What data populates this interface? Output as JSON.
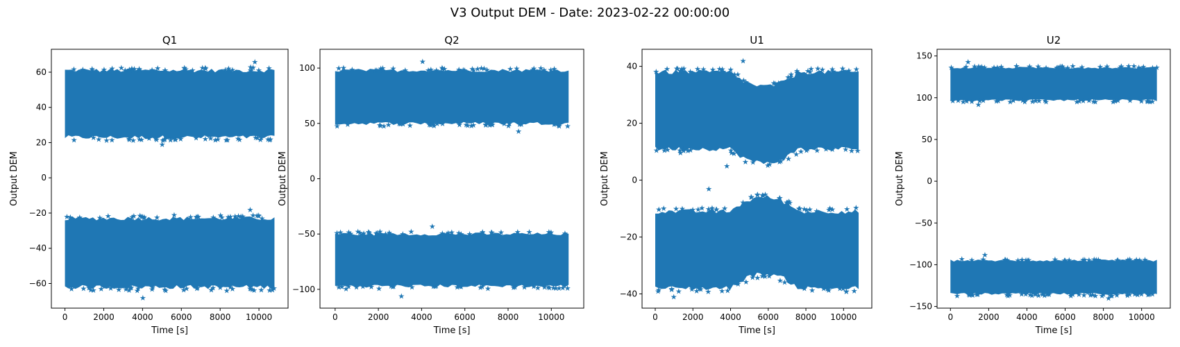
{
  "suptitle": "V3 Output DEM - Date: 2023-02-22 00:00:00",
  "colors": {
    "marker": "#1f77b4",
    "axes": "#000000",
    "background": "#ffffff"
  },
  "chart_data": [
    {
      "type": "scatter",
      "marker": "star",
      "title": "Q1",
      "xlabel": "Time [s]",
      "ylabel": "Output DEM",
      "xlim": [
        -700,
        11500
      ],
      "ylim": [
        -74,
        73
      ],
      "xticks": [
        0,
        2000,
        4000,
        6000,
        8000,
        10000
      ],
      "yticks": [
        -60,
        -40,
        -20,
        0,
        20,
        40,
        60
      ],
      "x_range": [
        0,
        10800
      ],
      "bands": [
        {
          "name": "upper",
          "y_min": 23,
          "y_max": 61,
          "extremes": [
            66,
            19
          ]
        },
        {
          "name": "lower",
          "y_min": -62,
          "y_max": -23,
          "extremes": [
            -18,
            -68
          ]
        }
      ]
    },
    {
      "type": "scatter",
      "marker": "star",
      "title": "Q2",
      "xlabel": "Time [s]",
      "ylabel": "Output DEM",
      "xlim": [
        -700,
        11500
      ],
      "ylim": [
        -117,
        117
      ],
      "xticks": [
        0,
        2000,
        4000,
        6000,
        8000,
        10000
      ],
      "yticks": [
        -100,
        -50,
        0,
        50,
        100
      ],
      "x_range": [
        0,
        10800
      ],
      "bands": [
        {
          "name": "upper",
          "y_min": 50,
          "y_max": 98,
          "extremes": [
            106,
            43
          ]
        },
        {
          "name": "lower",
          "y_min": -97,
          "y_max": -50,
          "extremes": [
            -43,
            -106
          ]
        }
      ]
    },
    {
      "type": "scatter",
      "marker": "star",
      "title": "U1",
      "xlabel": "Time [s]",
      "ylabel": "Output DEM",
      "xlim": [
        -700,
        11500
      ],
      "ylim": [
        -45,
        46
      ],
      "xticks": [
        0,
        2000,
        4000,
        6000,
        8000,
        10000
      ],
      "yticks": [
        -40,
        -20,
        0,
        20,
        40
      ],
      "x_range": [
        0,
        10800
      ],
      "bands": [
        {
          "name": "upper",
          "y_min": 11,
          "y_max": 38,
          "dip_center": 5800,
          "dip_amount": 5,
          "extremes": [
            42,
            5
          ]
        },
        {
          "name": "lower",
          "y_min": -38,
          "y_max": -11,
          "dip_center": 5800,
          "dip_amount": 5,
          "extremes": [
            -3,
            -41
          ]
        }
      ]
    },
    {
      "type": "scatter",
      "marker": "star",
      "title": "U2",
      "xlabel": "Time [s]",
      "ylabel": "Output DEM",
      "xlim": [
        -700,
        11500
      ],
      "ylim": [
        -152,
        158
      ],
      "xticks": [
        0,
        2000,
        4000,
        6000,
        8000,
        10000
      ],
      "yticks": [
        -150,
        -100,
        -50,
        0,
        50,
        100,
        150
      ],
      "x_range": [
        0,
        10800
      ],
      "bands": [
        {
          "name": "upper",
          "y_min": 97,
          "y_max": 136,
          "extremes": [
            143,
            92
          ]
        },
        {
          "name": "lower",
          "y_min": -135,
          "y_max": -95,
          "extremes": [
            -88,
            -140
          ]
        }
      ]
    }
  ]
}
